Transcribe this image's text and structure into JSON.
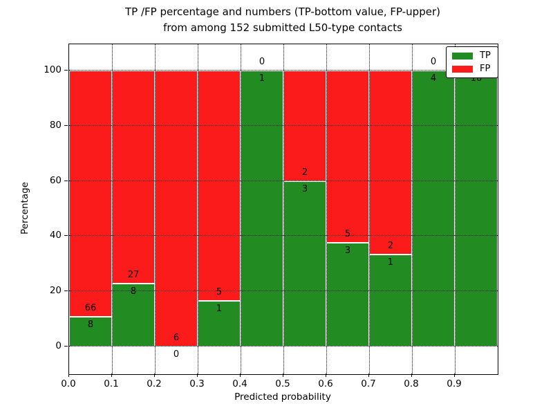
{
  "figure": {
    "title_line1": "TP /FP percentage and numbers (TP-bottom value, FP-upper)",
    "title_line2": "from among 152 submitted L50-type contacts"
  },
  "chart_data": {
    "type": "bar",
    "stacked": true,
    "orientation": "vertical",
    "title": "TP /FP percentage and numbers (TP-bottom value, FP-upper) from among 152 submitted L50-type contacts",
    "xlabel": "Predicted probability",
    "ylabel": "Percentage",
    "total_contacts": 152,
    "bins": [
      "0.0-0.1",
      "0.1-0.2",
      "0.2-0.3",
      "0.3-0.4",
      "0.4-0.5",
      "0.5-0.6",
      "0.6-0.7",
      "0.7-0.8",
      "0.8-0.9",
      "0.9-1.0"
    ],
    "series": [
      {
        "name": "TP",
        "color": "#228b22",
        "values": [
          8,
          8,
          0,
          1,
          1,
          3,
          3,
          1,
          4,
          10
        ]
      },
      {
        "name": "FP",
        "color": "#fb1b1b",
        "values": [
          66,
          27,
          6,
          5,
          0,
          2,
          5,
          2,
          0,
          0
        ]
      }
    ],
    "tp_percentages": [
      10.8,
      22.9,
      0.0,
      16.7,
      100.0,
      60.0,
      37.5,
      33.3,
      100.0,
      100.0
    ],
    "xticks": [
      "0.0",
      "0.1",
      "0.2",
      "0.3",
      "0.4",
      "0.5",
      "0.6",
      "0.7",
      "0.8",
      "0.9"
    ],
    "yticks": [
      0,
      20,
      40,
      60,
      80,
      100
    ],
    "xlim": [
      0.0,
      1.0
    ],
    "ylim": [
      -10,
      110
    ],
    "grid": "dotted",
    "legend": {
      "position": "upper right",
      "entries": [
        "TP",
        "FP"
      ]
    }
  }
}
